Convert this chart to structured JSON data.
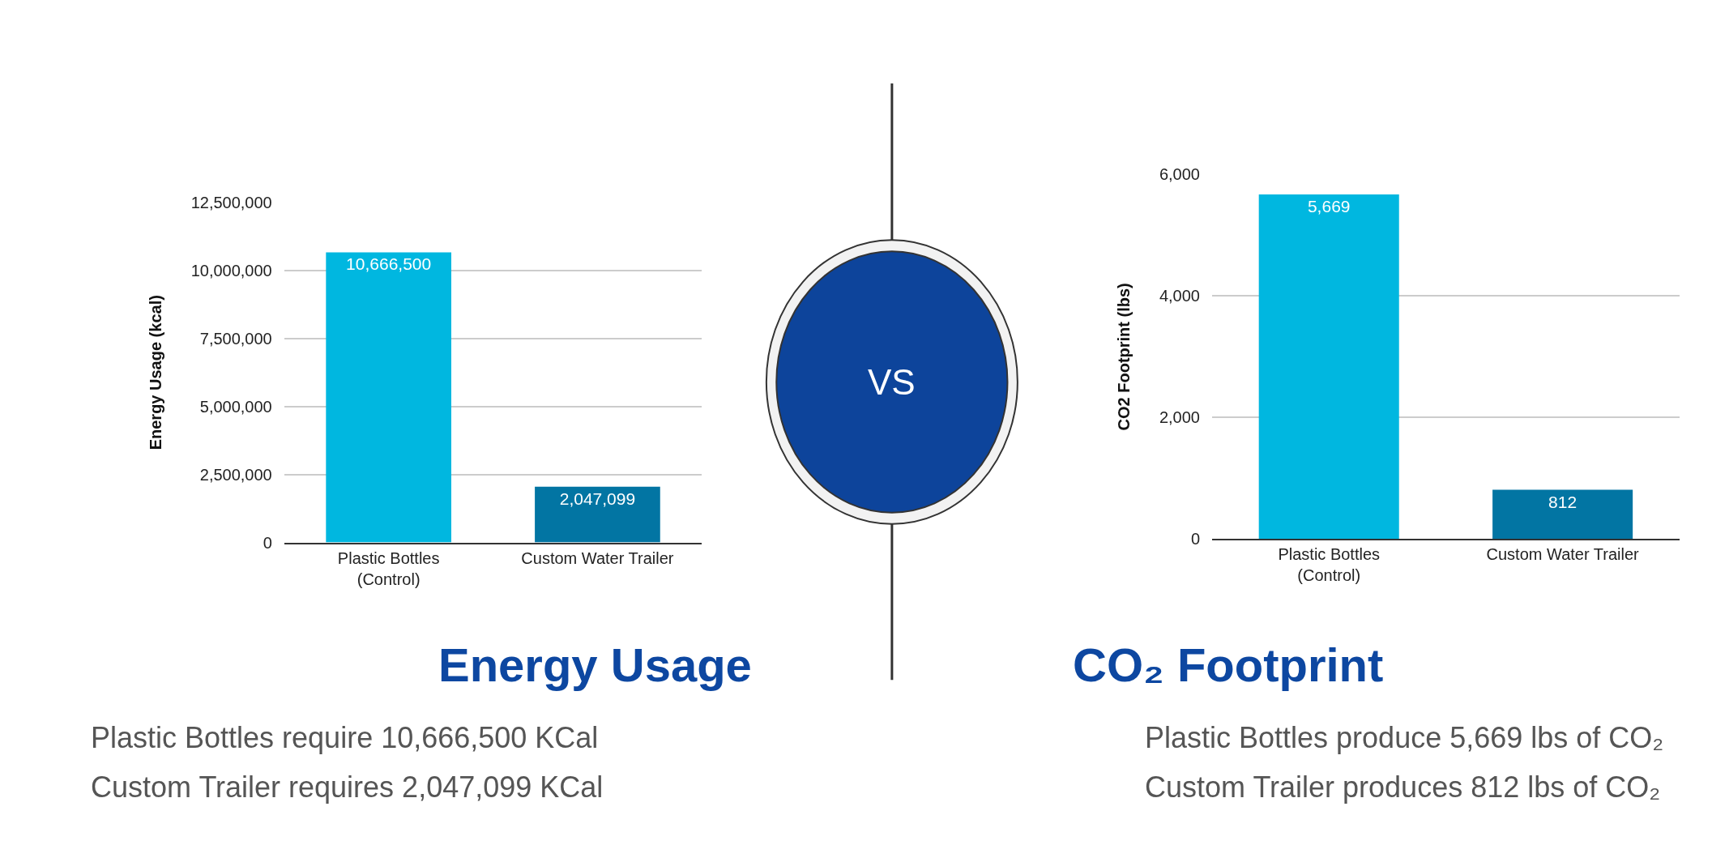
{
  "chart_data": [
    {
      "type": "bar",
      "title": "Energy Usage",
      "ylabel": "Energy Usage (kcal)",
      "categories": [
        "Plastic Bottles (Control)",
        "Custom Water Trailer"
      ],
      "values": [
        10666500,
        2047099
      ],
      "colors": [
        "#00b7e0",
        "#0275a3"
      ],
      "ylim": [
        0,
        12500000
      ],
      "yticks": [
        {
          "value": 0,
          "label": "0"
        },
        {
          "value": 2500000,
          "label": "2,500,000"
        },
        {
          "value": 5000000,
          "label": "5,000,000"
        },
        {
          "value": 7500000,
          "label": "7,500,000"
        },
        {
          "value": 10000000,
          "label": "10,000,000"
        },
        {
          "value": 12500000,
          "label": "12,500,000"
        }
      ],
      "grid": "y",
      "data_labels": true,
      "value_labels": [
        "10,666,500",
        "2,047,099"
      ],
      "annotations": [
        "Plastic Bottles require 10,666,500 KCal",
        "Custom Trailer requires 2,047,099 KCal"
      ]
    },
    {
      "type": "other",
      "title": "VS"
    },
    {
      "type": "bar",
      "title": "CO₂ Footprint",
      "ylabel": "CO2 Footprint (lbs)",
      "categories": [
        "Plastic Bottles (Control)",
        "Custom Water Trailer"
      ],
      "values": [
        5669,
        812
      ],
      "colors": [
        "#00b7e0",
        "#0275a3"
      ],
      "ylim": [
        0,
        6000
      ],
      "yticks": [
        {
          "value": 0,
          "label": "0"
        },
        {
          "value": 2000,
          "label": "2,000"
        },
        {
          "value": 4000,
          "label": "4,000"
        },
        {
          "value": 6000,
          "label": "6,000"
        }
      ],
      "grid": "y",
      "data_labels": true,
      "value_labels": [
        "5,669",
        "812"
      ],
      "annotations": [
        "Plastic Bottles produce 5,669 lbs of CO₂",
        "Custom Trailer produces 812 lbs of CO₂"
      ]
    }
  ]
}
